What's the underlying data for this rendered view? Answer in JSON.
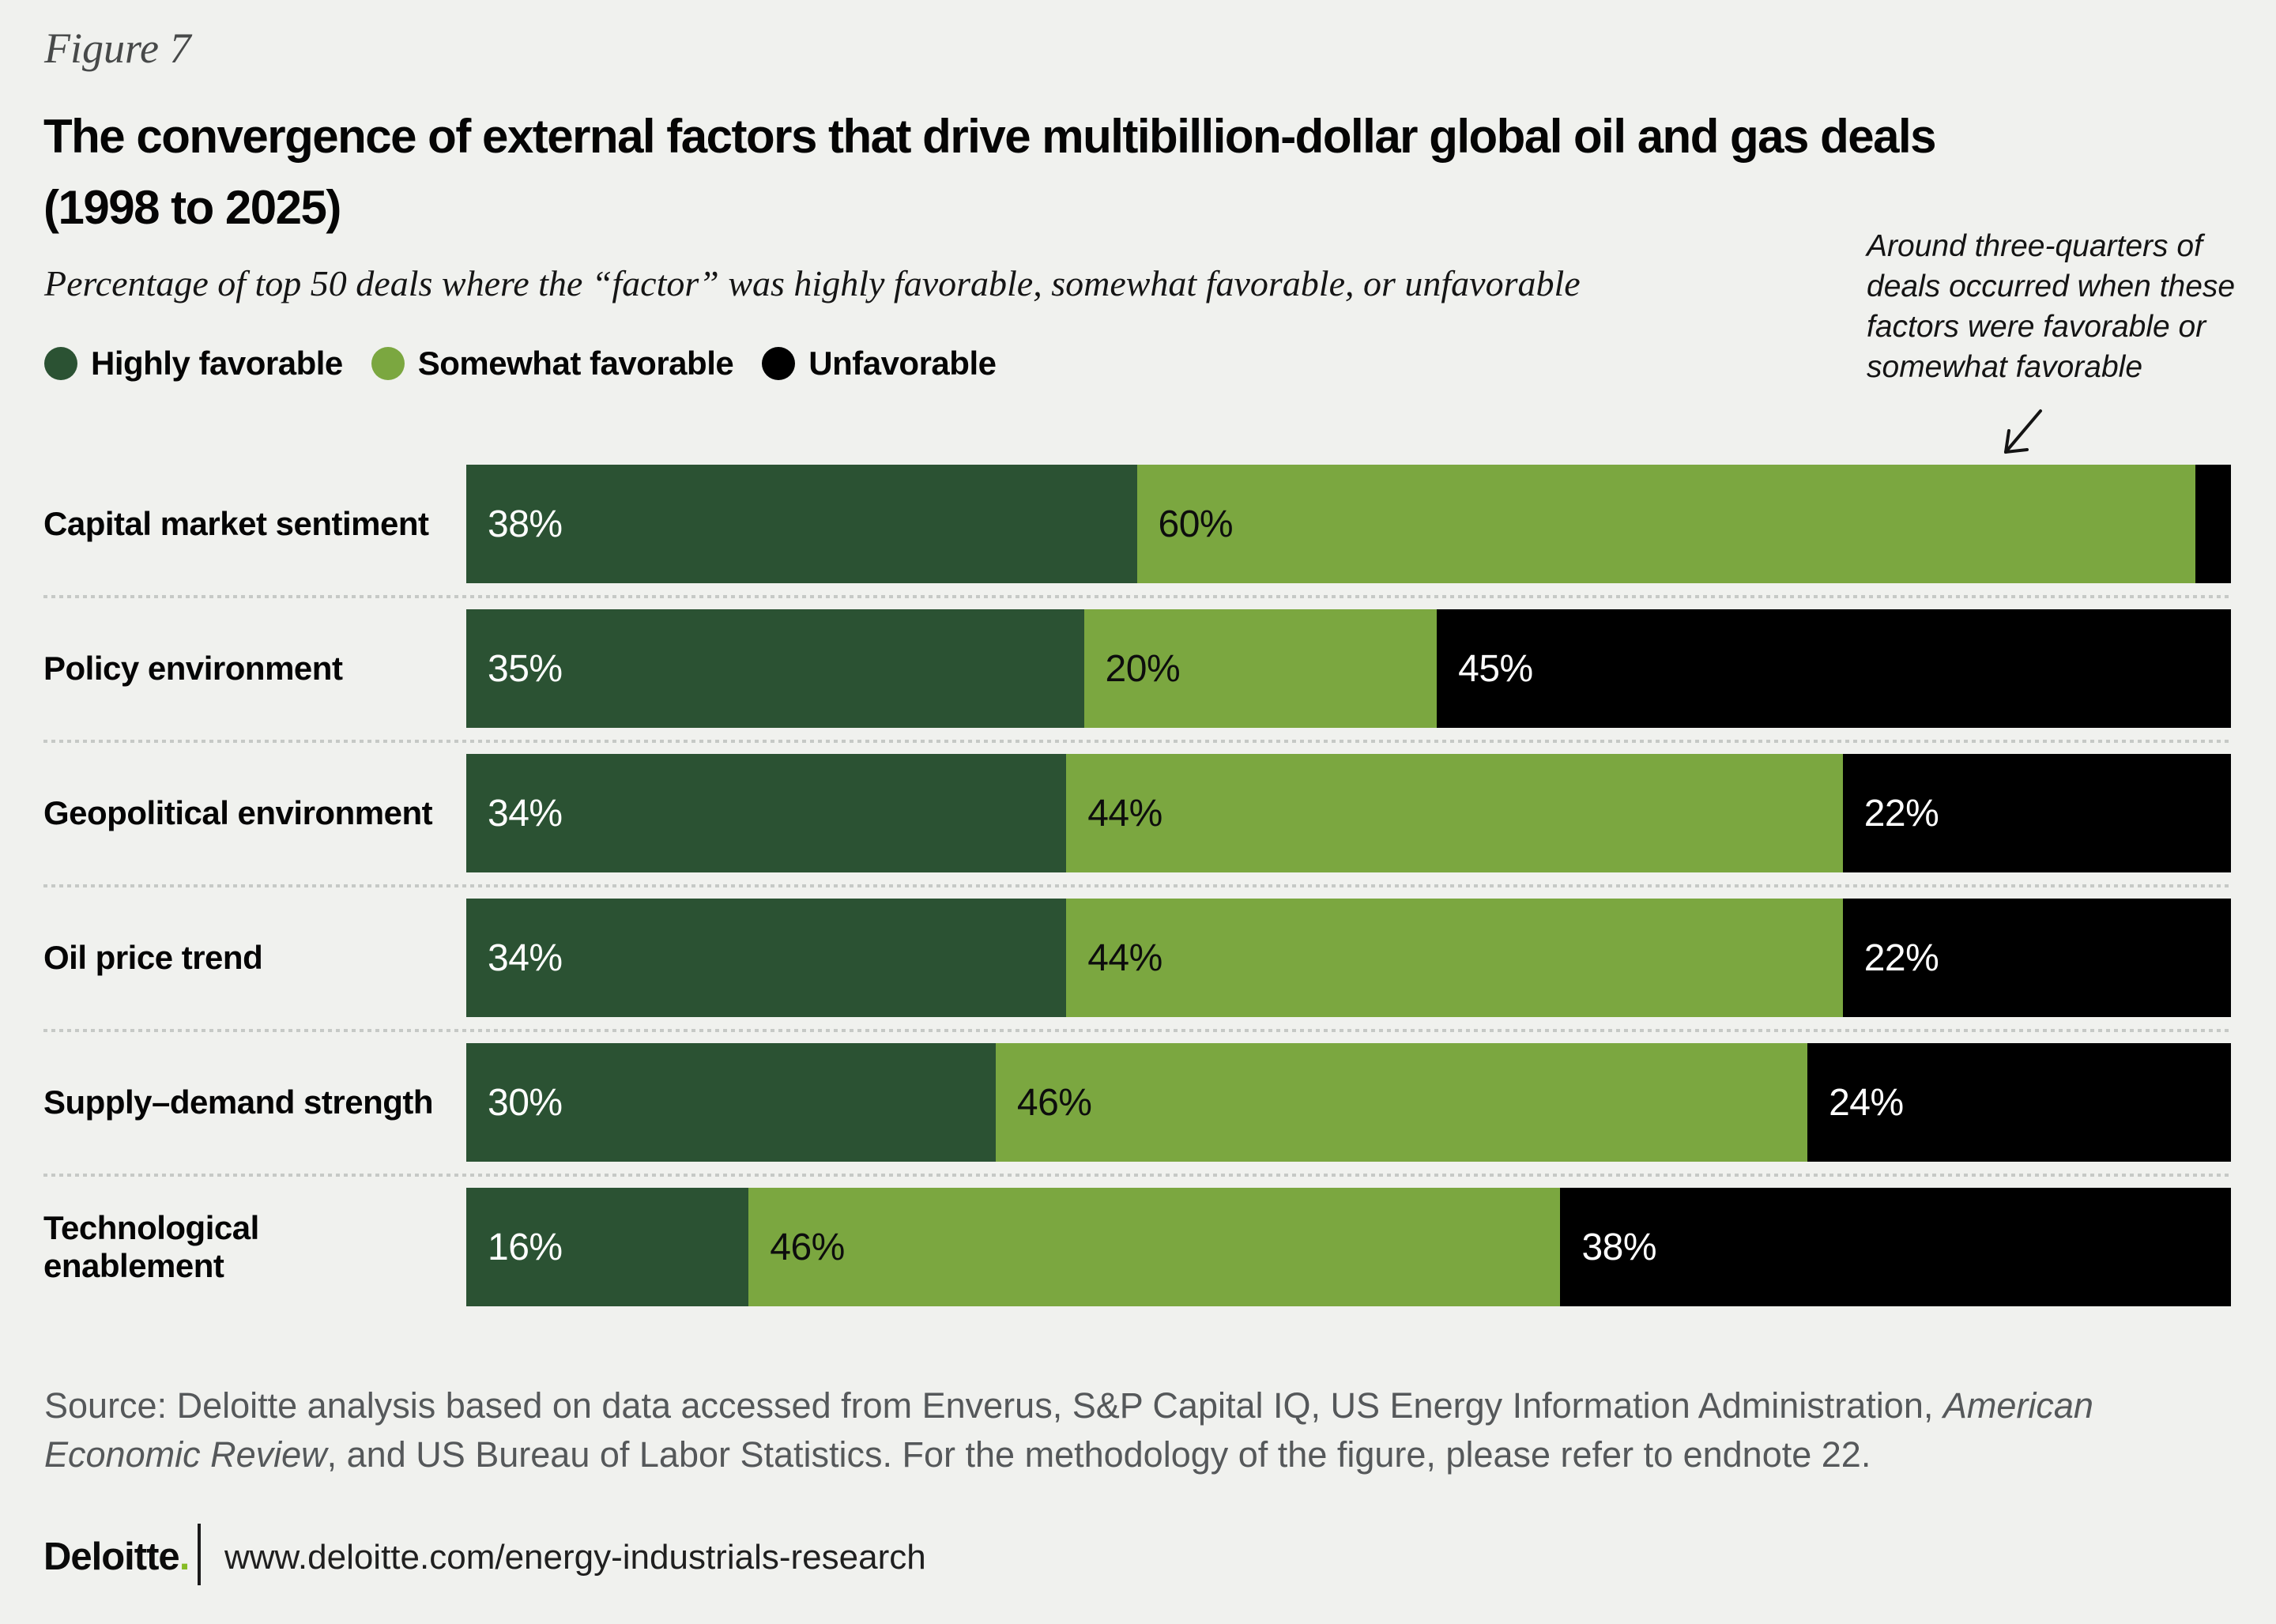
{
  "figure_label": "Figure 7",
  "title": {
    "line1": "The convergence of external factors that drive multibillion-dollar global oil and gas deals",
    "line2": "(1998 to 2025)"
  },
  "subtitle": "Percentage of top 50 deals where the “factor” was highly favorable, somewhat favorable, or unfavorable",
  "legend": [
    {
      "label": "Highly favorable",
      "color": "#2B5233"
    },
    {
      "label": "Somewhat favorable",
      "color": "#7BA740"
    },
    {
      "label": "Unfavorable",
      "color": "#000000"
    }
  ],
  "annotation": {
    "text": "Around three-quarters of deals occurred when these factors were favorable or somewhat favorable"
  },
  "chart_data": {
    "type": "bar",
    "orientation": "horizontal",
    "stacked": true,
    "xlim": [
      0,
      100
    ],
    "value_suffix": "%",
    "label_min_value": 3,
    "categories": [
      "Capital market sentiment",
      "Policy environment",
      "Geopolitical environment",
      "Oil price trend",
      "Supply–demand strength",
      "Technological enablement"
    ],
    "series": [
      {
        "name": "Highly favorable",
        "color": "#2B5233",
        "label_color": "#ffffff",
        "values": [
          38,
          35,
          34,
          34,
          30,
          16
        ]
      },
      {
        "name": "Somewhat favorable",
        "color": "#7BA740",
        "label_color": "#0d0d0d",
        "values": [
          60,
          20,
          44,
          44,
          46,
          46
        ]
      },
      {
        "name": "Unfavorable",
        "color": "#000000",
        "label_color": "#ffffff",
        "values": [
          2,
          45,
          22,
          22,
          24,
          38
        ]
      }
    ]
  },
  "source": {
    "prefix": "Source: Deloitte analysis based on data accessed from Enverus, S&P Capital IQ, US Energy Information Administration, ",
    "italic": "American Economic Review",
    "suffix": ", and US Bureau of Labor Statistics. For the methodology of the figure, please refer to endnote 22."
  },
  "footer": {
    "logo_text": "Deloitte",
    "logo_dot": ".",
    "logo_dot_color": "#86BC25",
    "url": "www.deloitte.com/energy-industrials-research"
  }
}
